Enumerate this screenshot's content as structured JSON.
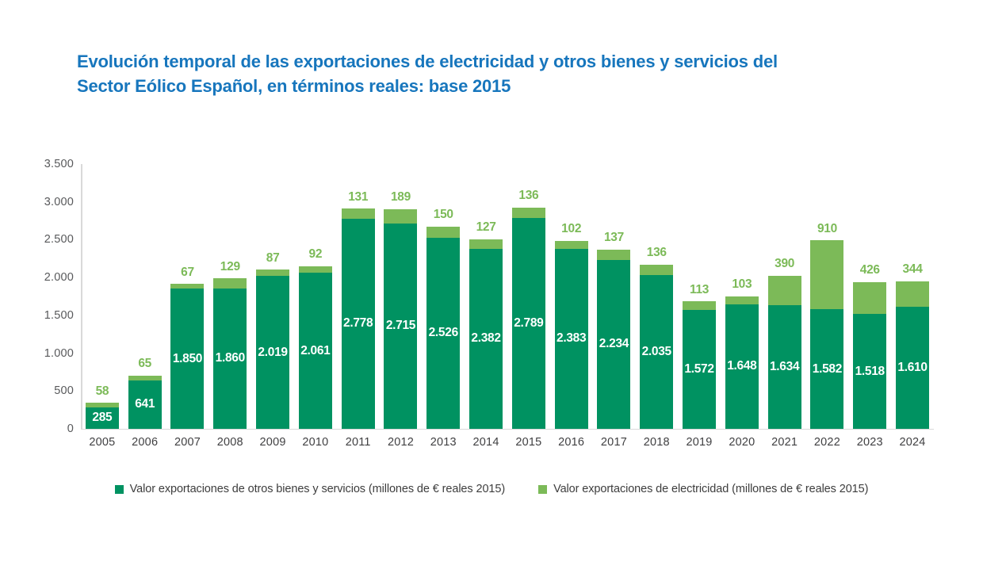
{
  "title": {
    "line1": "Evolución temporal de las exportaciones de electricidad y otros bienes y servicios del",
    "line2": "Sector Eólico Español, en términos reales: base 2015"
  },
  "colors": {
    "title": "#1776bd",
    "dark_green": "#009261",
    "light_green": "#7cba58",
    "axis_line": "#d9d9d9",
    "tick_text": "#58595b",
    "year_text": "#404042",
    "legend_text": "#3d3d3d"
  },
  "chart_data": {
    "type": "bar",
    "stacked": true,
    "title": "Evolución temporal de las exportaciones de electricidad y otros bienes y servicios del Sector Eólico Español, en términos reales: base 2015",
    "categories": [
      "2005",
      "2006",
      "2007",
      "2008",
      "2009",
      "2010",
      "2011",
      "2012",
      "2013",
      "2014",
      "2015",
      "2016",
      "2017",
      "2018",
      "2019",
      "2020",
      "2021",
      "2022",
      "2023",
      "2024"
    ],
    "series": [
      {
        "name": "Valor exportaciones de otros bienes y servicios (millones de € reales 2015)",
        "color_key": "dark_green",
        "values": [
          285,
          641,
          1850,
          1860,
          2019,
          2061,
          2778,
          2715,
          2526,
          2382,
          2789,
          2383,
          2234,
          2035,
          1572,
          1648,
          1634,
          1582,
          1518,
          1610
        ],
        "labels": [
          "285",
          "641",
          "1.850",
          "1.860",
          "2.019",
          "2.061",
          "2.778",
          "2.715",
          "2.526",
          "2.382",
          "2.789",
          "2.383",
          "2.234",
          "2.035",
          "1.572",
          "1.648",
          "1.634",
          "1.582",
          "1.518",
          "1.610"
        ]
      },
      {
        "name": "Valor exportaciones de electricidad (millones de € reales 2015)",
        "color_key": "light_green",
        "values": [
          58,
          65,
          67,
          129,
          87,
          92,
          131,
          189,
          150,
          127,
          136,
          102,
          137,
          136,
          113,
          103,
          390,
          910,
          426,
          344
        ],
        "labels": [
          "58",
          "65",
          "67",
          "129",
          "87",
          "92",
          "131",
          "189",
          "150",
          "127",
          "136",
          "102",
          "137",
          "136",
          "113",
          "103",
          "390",
          "910",
          "426",
          "344"
        ]
      }
    ],
    "xlabel": "",
    "ylabel": "",
    "ylim": [
      0,
      3500
    ],
    "yticks": [
      {
        "value": 3500,
        "label": "3.500"
      },
      {
        "value": 3000,
        "label": "3.000"
      },
      {
        "value": 2500,
        "label": "2.500"
      },
      {
        "value": 2000,
        "label": "2.000"
      },
      {
        "value": 1500,
        "label": "1.500"
      },
      {
        "value": 1000,
        "label": "1.000"
      },
      {
        "value": 500,
        "label": "500"
      },
      {
        "value": 0,
        "label": "0"
      }
    ],
    "grid": false,
    "legend_position": "bottom"
  },
  "legend": {
    "items": [
      {
        "label": "Valor exportaciones de otros bienes y servicios (millones de € reales 2015)",
        "color_key": "dark_green"
      },
      {
        "label": "Valor exportaciones de electricidad (millones de € reales 2015)",
        "color_key": "light_green"
      }
    ]
  }
}
